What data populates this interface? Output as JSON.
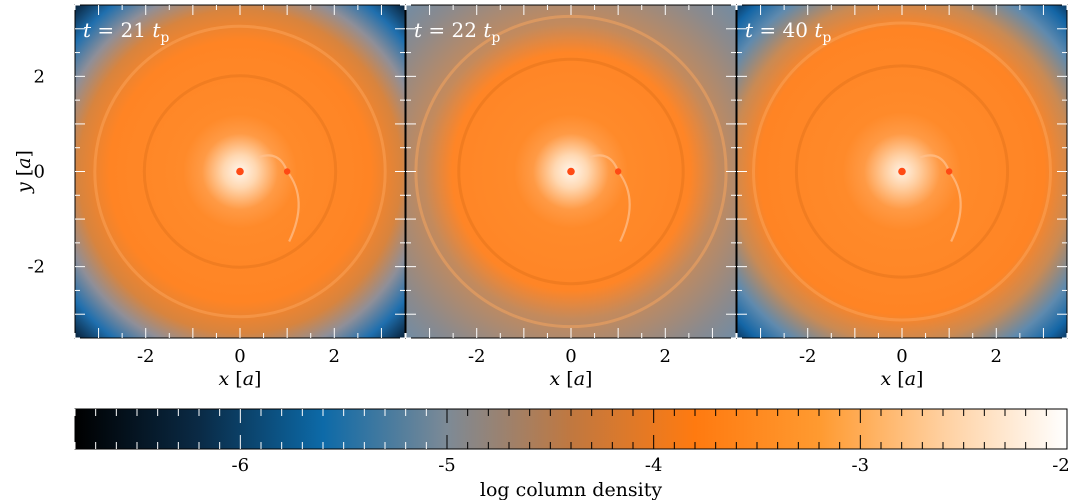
{
  "chart_data": {
    "type": "heatmap",
    "panels": [
      {
        "time_label": {
          "prefix": "t",
          "eq": " = 21 ",
          "unit": "t",
          "sub": "p"
        },
        "xlabel": {
          "var": "x",
          "unit": "[a]"
        },
        "ylabel": {
          "var": "y",
          "unit": "[a]"
        },
        "variant": "early"
      },
      {
        "time_label": {
          "prefix": "t",
          "eq": " = 22 ",
          "unit": "t",
          "sub": "p"
        },
        "xlabel": {
          "var": "x",
          "unit": "[a]"
        },
        "variant": "mid"
      },
      {
        "time_label": {
          "prefix": "t",
          "eq": " = 40 ",
          "unit": "t",
          "sub": "p"
        },
        "xlabel": {
          "var": "x",
          "unit": "[a]"
        },
        "variant": "late"
      }
    ],
    "xlim": [
      -3.5,
      3.5
    ],
    "ylim": [
      -3.5,
      3.5
    ],
    "xticks": [
      -2,
      0,
      2
    ],
    "yticks": [
      -2,
      0,
      2
    ],
    "star_position": [
      0,
      0
    ],
    "planet_position": [
      1,
      0
    ],
    "colorbar": {
      "label": "log column density",
      "range": [
        -6.8,
        -2
      ],
      "ticks": [
        -6,
        -5,
        -4,
        -3,
        -2
      ],
      "colormap": [
        "#000000",
        "#0a2a45",
        "#0d6aa8",
        "#7d8a96",
        "#c07840",
        "#ff7a10",
        "#ff9a30",
        "#ffd0a0",
        "#ffffff"
      ]
    }
  }
}
